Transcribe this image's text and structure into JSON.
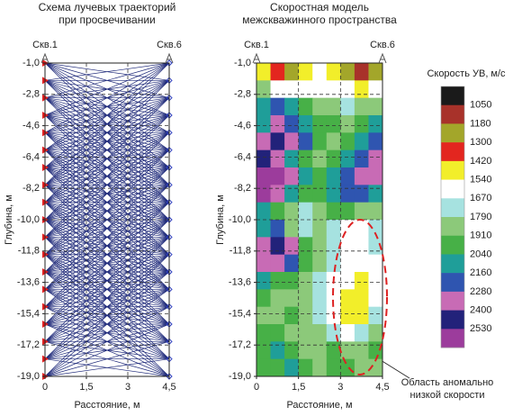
{
  "chart_data": [
    {
      "type": "rays",
      "title": [
        "Схема лучевых траекторий",
        "при просвечивании"
      ],
      "x_label": "Расстояние, м",
      "y_label": "Глубина, м",
      "wells": [
        "Скв.1",
        "Скв.6"
      ],
      "xlim": [
        0,
        4.5
      ],
      "ylim": [
        -19,
        -1
      ],
      "xticks": [
        0,
        {
          "value": 1.5,
          "label": "1,5"
        },
        3,
        {
          "value": 4.5,
          "label": "4,5"
        }
      ],
      "yticks": [
        {
          "value": -1,
          "label": "-1,0"
        },
        {
          "value": -2.8,
          "label": "-2,8"
        },
        {
          "value": -4.6,
          "label": "-4,6"
        },
        {
          "value": -6.4,
          "label": "-6,4"
        },
        {
          "value": -8.2,
          "label": "-8,2"
        },
        {
          "value": -10,
          "label": "-10,0"
        },
        {
          "value": -11.8,
          "label": "-11,8"
        },
        {
          "value": -13.6,
          "label": "-13,6"
        },
        {
          "value": -15.4,
          "label": "-15,4"
        },
        {
          "value": -17.2,
          "label": "-17,2"
        },
        {
          "value": -19,
          "label": "-19,0"
        }
      ],
      "grid": true,
      "sources": [
        -1,
        -2,
        -3,
        -4,
        -5,
        -6,
        -7,
        -8,
        -9,
        -10,
        -11,
        -12,
        -13,
        -14,
        -15,
        -16,
        -17,
        -18,
        -19
      ],
      "receivers": [
        -1,
        -2,
        -3,
        -4,
        -5,
        -6,
        -7,
        -8,
        -9,
        -10,
        -11,
        -12,
        -13,
        -14,
        -15,
        -16,
        -17,
        -18,
        -19
      ],
      "ray_color": "#1f2a7a",
      "source_color": "#e02020",
      "receiver_color": "#3040c0"
    },
    {
      "type": "heatmap",
      "title": [
        "Скоростная модель",
        "межскважинного пространства"
      ],
      "x_label": "Расстояние, м",
      "y_label": "Глубина, м",
      "wells": [
        "Скв.1",
        "Скв.6"
      ],
      "xlim": [
        0,
        4.5
      ],
      "ylim": [
        -19,
        -1
      ],
      "xticks": [
        0,
        {
          "value": 1.5,
          "label": "1,5"
        },
        3,
        {
          "value": 4.5,
          "label": "4,5"
        }
      ],
      "yticks": [
        {
          "value": -1,
          "label": "-1,0"
        },
        {
          "value": -2.8,
          "label": "-2,8"
        },
        {
          "value": -4.6,
          "label": "-4,6"
        },
        {
          "value": -6.4,
          "label": "-6,4"
        },
        {
          "value": -8.2,
          "label": "-8,2"
        },
        {
          "value": -10,
          "label": "-10,0"
        },
        {
          "value": -11.8,
          "label": "-11,8"
        },
        {
          "value": -13.6,
          "label": "-13,6"
        },
        {
          "value": -15.4,
          "label": "-15,4"
        },
        {
          "value": -17.2,
          "label": "-17,2"
        },
        {
          "value": -19,
          "label": "-19,0"
        }
      ],
      "grid": true,
      "values": [
        [
          1540,
          1420,
          1300,
          1540,
          1670,
          1540,
          1300,
          1180,
          1300
        ],
        [
          1910,
          1670,
          1670,
          1670,
          1670,
          1670,
          1670,
          1540,
          1670
        ],
        [
          2160,
          2280,
          2160,
          2040,
          1910,
          1910,
          1790,
          1910,
          1910
        ],
        [
          2160,
          2400,
          2280,
          2160,
          2040,
          2040,
          1910,
          2040,
          2160
        ],
        [
          2400,
          2530,
          2400,
          2280,
          2040,
          1910,
          2040,
          2160,
          2280
        ],
        [
          2530,
          2400,
          2160,
          2040,
          1910,
          2040,
          2160,
          2280,
          2400
        ],
        [
          2600,
          2600,
          2400,
          2160,
          2040,
          2160,
          2280,
          2400,
          2400
        ],
        [
          2600,
          2400,
          2160,
          2040,
          2040,
          2160,
          2280,
          2280,
          2160
        ],
        [
          2160,
          2040,
          1910,
          1790,
          1910,
          2040,
          2040,
          1910,
          1910
        ],
        [
          2160,
          2280,
          1910,
          1790,
          1910,
          1790,
          1670,
          1670,
          1790
        ],
        [
          2400,
          2530,
          2400,
          2040,
          1910,
          1790,
          1670,
          1670,
          1790
        ],
        [
          2400,
          2400,
          2280,
          2040,
          1910,
          1790,
          1670,
          1670,
          1670
        ],
        [
          2160,
          2040,
          2040,
          1910,
          1790,
          1670,
          1670,
          1540,
          1670
        ],
        [
          2040,
          1910,
          1910,
          1910,
          1790,
          1670,
          1540,
          1540,
          1670
        ],
        [
          1910,
          1910,
          2040,
          1910,
          1790,
          1670,
          1540,
          1540,
          1790
        ],
        [
          2040,
          2040,
          1910,
          1910,
          1910,
          1790,
          1670,
          1790,
          1910
        ],
        [
          2040,
          2160,
          2040,
          1910,
          1910,
          2040,
          1910,
          1910,
          2040
        ],
        [
          2040,
          2040,
          2160,
          2040,
          1910,
          2040,
          2040,
          1910,
          1910
        ]
      ],
      "colorbar": {
        "title": "Скорость УВ, м/с",
        "levels": [
          1050,
          1180,
          1300,
          1420,
          1540,
          1670,
          1790,
          1910,
          2040,
          2160,
          2280,
          2400,
          2530
        ],
        "colors": [
          "#1a1a1a",
          "#a8322a",
          "#a3a62a",
          "#e3261f",
          "#f2ee2a",
          "#ffffff",
          "#a6e2e0",
          "#8cc97a",
          "#47b047",
          "#1f9e99",
          "#2f55b0",
          "#c86bb5",
          "#22227a",
          "#9c3c9c"
        ]
      },
      "annotation": [
        "Область аномально",
        "низкой скорости"
      ]
    }
  ]
}
